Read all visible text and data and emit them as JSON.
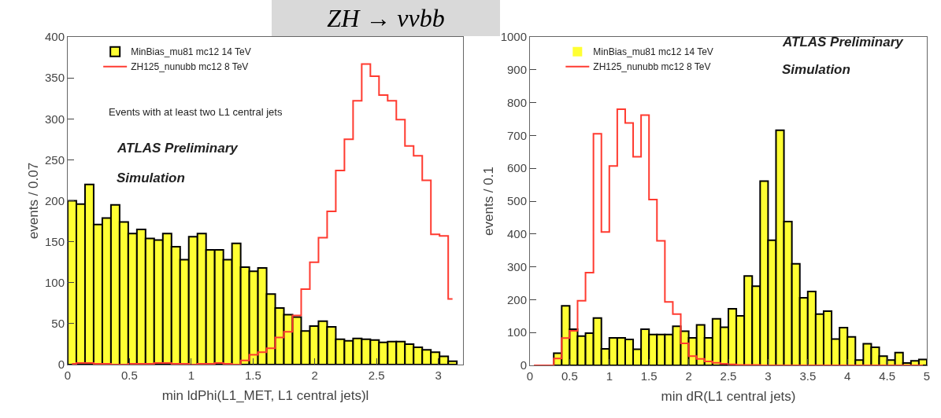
{
  "chart_data": [
    {
      "type": "histogram",
      "title": "ZH → ννbb",
      "xlabel": "min ldPhi(L1_MET, L1 central jets)l",
      "ylabel": "events / 0.07",
      "bins": [
        0,
        0.07,
        0.14,
        0.21,
        0.28,
        0.35,
        0.42,
        0.49,
        0.56,
        0.63,
        0.7,
        0.77,
        0.84,
        0.91,
        0.98,
        1.05,
        1.12,
        1.19,
        1.26,
        1.33,
        1.4,
        1.47,
        1.54,
        1.61,
        1.68,
        1.75,
        1.82,
        1.89,
        1.96,
        2.03,
        2.1,
        2.17,
        2.24,
        2.31,
        2.38,
        2.45,
        2.52,
        2.59,
        2.66,
        2.73,
        2.8,
        2.87,
        2.94,
        3.01,
        3.08,
        3.15
      ],
      "series": [
        {
          "name": "MinBias_mu81 mc12 14 TeV",
          "type": "histogram",
          "color": "#ffff33",
          "values": [
            200,
            196,
            220,
            171,
            179,
            195,
            174,
            160,
            165,
            154,
            152,
            160,
            144,
            128,
            156,
            160,
            140,
            140,
            128,
            148,
            119,
            114,
            118,
            86,
            69,
            61,
            58,
            41,
            47,
            53,
            46,
            31,
            29,
            32,
            31,
            30,
            27,
            28,
            28,
            25,
            21,
            18,
            15,
            10,
            4
          ]
        },
        {
          "name": "ZH125_nunubb mc12 8 TeV",
          "type": "step",
          "color": "#ff3b30",
          "x": [
            0.035,
            0.105,
            0.175,
            0.245,
            0.315,
            0.385,
            0.455,
            0.525,
            0.595,
            0.665,
            0.735,
            0.805,
            0.875,
            0.945,
            1.015,
            1.085,
            1.155,
            1.225,
            1.295,
            1.365,
            1.435,
            1.505,
            1.575,
            1.645,
            1.715,
            1.785,
            1.855,
            1.925,
            1.995,
            2.065,
            2.135,
            2.205,
            2.275,
            2.345,
            2.415,
            2.485,
            2.555,
            2.625,
            2.695,
            2.765,
            2.835,
            2.905,
            2.975,
            3.045,
            3.115
          ],
          "values": [
            1,
            2,
            2,
            1,
            1,
            0,
            0,
            1,
            1,
            1,
            2,
            2,
            1,
            1,
            0,
            1,
            1,
            2,
            1,
            0,
            5,
            12,
            15,
            20,
            33,
            40,
            60,
            92,
            125,
            155,
            187,
            237,
            275,
            322,
            367,
            352,
            329,
            322,
            299,
            267,
            255,
            225,
            159,
            157,
            80
          ]
        }
      ],
      "xlim": [
        0,
        3.2
      ],
      "xticks": [
        0,
        0.5,
        1,
        1.5,
        2,
        2.5,
        3
      ],
      "ylim": [
        0,
        400
      ],
      "yticks": [
        0,
        50,
        100,
        150,
        200,
        250,
        300,
        350,
        400
      ],
      "grid": false,
      "legend": "top left",
      "annotations": [
        "Events with at least two L1 central jets",
        "ATLAS Preliminary",
        "Simulation"
      ]
    },
    {
      "type": "histogram",
      "xlabel": "min dR(L1 central jets)",
      "ylabel": "events / 0.1",
      "bins": [
        0,
        0.1,
        0.2,
        0.3,
        0.4,
        0.5,
        0.6,
        0.7,
        0.8,
        0.9,
        1,
        1.1,
        1.2,
        1.3,
        1.4,
        1.5,
        1.6,
        1.7,
        1.8,
        1.9,
        2,
        2.1,
        2.2,
        2.3,
        2.4,
        2.5,
        2.6,
        2.7,
        2.8,
        2.9,
        3,
        3.1,
        3.2,
        3.3,
        3.4,
        3.5,
        3.6,
        3.7,
        3.8,
        3.9,
        4,
        4.1,
        4.2,
        4.3,
        4.4,
        4.5,
        4.6,
        4.7,
        4.8,
        4.9,
        5
      ],
      "series": [
        {
          "name": "MinBias_mu81 mc12 14 TeV",
          "type": "histogram",
          "color": "#ffff33",
          "values": [
            0,
            0,
            0,
            37,
            181,
            110,
            89,
            98,
            144,
            50,
            84,
            84,
            79,
            49,
            110,
            94,
            94,
            94,
            119,
            104,
            84,
            123,
            84,
            142,
            116,
            172,
            151,
            272,
            241,
            561,
            381,
            716,
            438,
            309,
            206,
            225,
            156,
            165,
            80,
            115,
            87,
            16,
            66,
            55,
            28,
            16,
            39,
            7,
            14,
            18
          ]
        },
        {
          "name": "ZH125_nunubb mc12 8 TeV",
          "type": "step",
          "color": "#ff3b30",
          "x": [
            0.05,
            0.15,
            0.25,
            0.35,
            0.45,
            0.55,
            0.65,
            0.75,
            0.85,
            0.95,
            1.05,
            1.15,
            1.25,
            1.35,
            1.45,
            1.55,
            1.65,
            1.75,
            1.85,
            1.95,
            2.05,
            2.15,
            2.25,
            2.35,
            2.45,
            2.55,
            2.65,
            2.75,
            2.85,
            2.95,
            3.05,
            3.15,
            3.25,
            3.35,
            3.45,
            3.55,
            3.65,
            3.75,
            3.85,
            3.95,
            4.05,
            4.15,
            4.25,
            4.35,
            4.45,
            4.55,
            4.65,
            4.75,
            4.85,
            4.95
          ],
          "values": [
            0,
            0,
            0,
            21,
            83,
            105,
            197,
            282,
            705,
            406,
            607,
            780,
            738,
            635,
            762,
            505,
            379,
            193,
            156,
            67,
            28,
            20,
            12,
            8,
            5,
            3,
            1,
            1,
            1,
            0,
            0,
            0,
            0,
            0,
            0,
            0,
            0,
            0,
            0,
            0,
            0,
            0,
            0,
            0,
            0,
            0,
            0,
            0,
            0,
            0
          ]
        }
      ],
      "xlim": [
        0,
        5
      ],
      "xticks": [
        0,
        0.5,
        1,
        1.5,
        2,
        2.5,
        3,
        3.5,
        4,
        4.5,
        5
      ],
      "ylim": [
        0,
        1000
      ],
      "yticks": [
        0,
        100,
        200,
        300,
        400,
        500,
        600,
        700,
        800,
        900,
        1000
      ],
      "grid": false,
      "legend": "top left",
      "annotations": [
        "ATLAS Preliminary",
        "Simulation"
      ]
    }
  ]
}
